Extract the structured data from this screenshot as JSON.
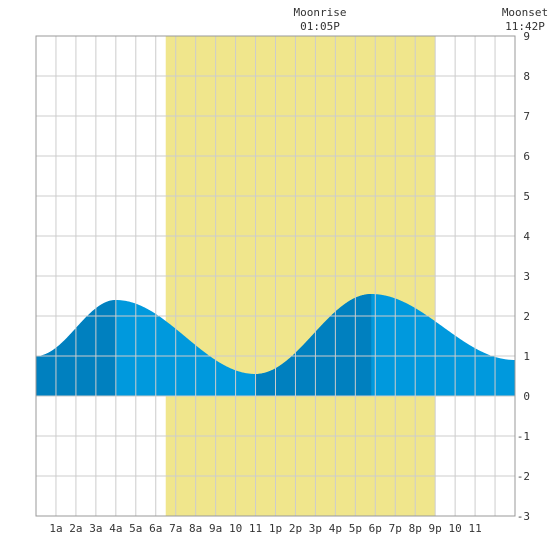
{
  "chart_data": {
    "type": "area",
    "x_tick_labels": [
      "1a",
      "2a",
      "3a",
      "4a",
      "5a",
      "6a",
      "7a",
      "8a",
      "9a",
      "10",
      "11",
      "1p",
      "2p",
      "3p",
      "4p",
      "5p",
      "6p",
      "7p",
      "8p",
      "9p",
      "10",
      "11"
    ],
    "y_ticks": [
      -3,
      -2,
      -1,
      0,
      1,
      2,
      3,
      4,
      5,
      6,
      7,
      8,
      9
    ],
    "ylim": [
      -3,
      9
    ],
    "xlim_hours": [
      0,
      24
    ],
    "grid": true,
    "daylight_hours": [
      6.5,
      20.0
    ],
    "tide_extremes": [
      {
        "hour": 0.0,
        "value": 1.0
      },
      {
        "hour": 4.0,
        "value": 2.4
      },
      {
        "hour": 11.0,
        "value": 0.55
      },
      {
        "hour": 16.8,
        "value": 2.55
      },
      {
        "hour": 24.0,
        "value": 0.9
      }
    ],
    "dark_band_hours": [
      [
        0,
        4.0
      ],
      [
        11.0,
        16.8
      ]
    ],
    "annotations": [
      {
        "label": "Moonrise",
        "time": "01:05P"
      },
      {
        "label": "Moonset",
        "time": "11:42P"
      }
    ]
  },
  "colors": {
    "background": "#ffffff",
    "grid": "#cccccc",
    "daylight": "#f0e68c",
    "tide_light": "#0099dd",
    "tide_dark": "#0080bf",
    "text": "#333333"
  }
}
